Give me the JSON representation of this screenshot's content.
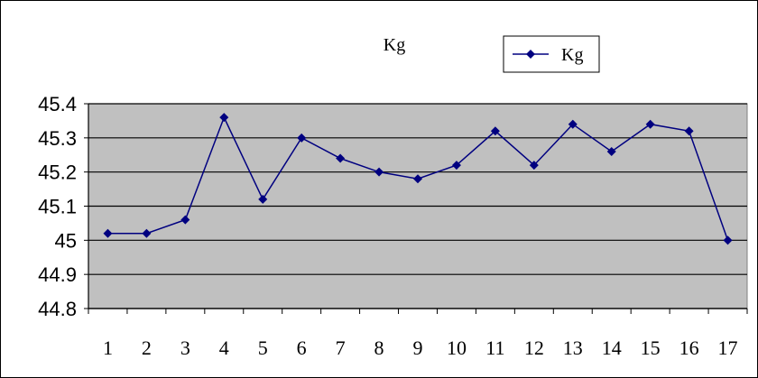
{
  "chart_data": {
    "type": "line",
    "title": "Kg",
    "categories": [
      "1",
      "2",
      "3",
      "4",
      "5",
      "6",
      "7",
      "8",
      "9",
      "10",
      "11",
      "12",
      "13",
      "14",
      "15",
      "16",
      "17"
    ],
    "series": [
      {
        "name": "Kg",
        "values": [
          45.02,
          45.02,
          45.06,
          45.36,
          45.12,
          45.3,
          45.24,
          45.2,
          45.18,
          45.22,
          45.32,
          45.22,
          45.34,
          45.26,
          45.34,
          45.32,
          45.0
        ]
      }
    ],
    "ylim": [
      44.8,
      45.4
    ],
    "yticks": [
      "45.4",
      "45.3",
      "45.2",
      "45.1",
      "45",
      "44.9",
      "44.8"
    ],
    "grid": true,
    "legend": "top-right",
    "colors": {
      "series": "#000080",
      "plot_bg": "#c0c0c0"
    }
  }
}
